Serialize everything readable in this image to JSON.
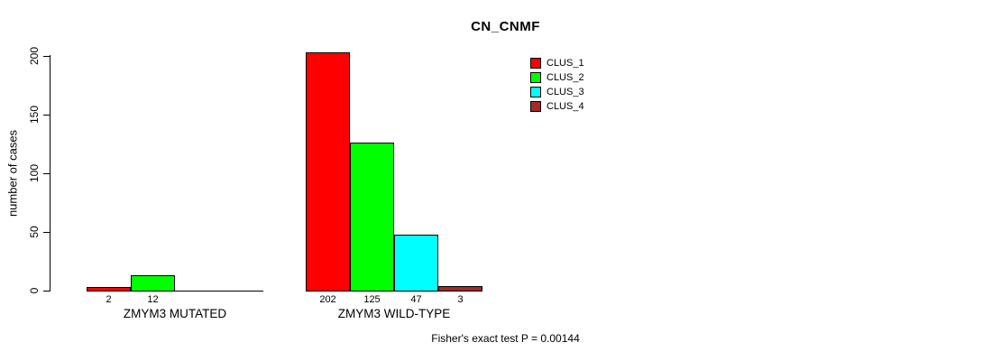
{
  "chart_data": {
    "type": "bar",
    "title": "CN_CNMF",
    "xlabel": "",
    "ylabel": "number of cases",
    "categories": [
      "ZMYM3 MUTATED",
      "ZMYM3 WILD-TYPE"
    ],
    "series": [
      {
        "name": "CLUS_1",
        "color": "#ff0000",
        "values": [
          2,
          202
        ]
      },
      {
        "name": "CLUS_2",
        "color": "#00ff00",
        "values": [
          12,
          125
        ]
      },
      {
        "name": "CLUS_3",
        "color": "#00ffff",
        "values": [
          0,
          47
        ]
      },
      {
        "name": "CLUS_4",
        "color": "#a52a2a",
        "values": [
          0,
          3
        ]
      }
    ],
    "bar_value_labels_shown": [
      "2",
      "12",
      "202",
      "125",
      "47",
      "3"
    ],
    "yticks": [
      0,
      50,
      100,
      150,
      200
    ],
    "ylim": [
      0,
      200
    ],
    "grid": false,
    "legend": {
      "position": "top-right",
      "entries": [
        "CLUS_1",
        "CLUS_2",
        "CLUS_3",
        "CLUS_4"
      ]
    },
    "footer": "Fisher's exact test P = 0.00144",
    "background": "#ffffff"
  }
}
